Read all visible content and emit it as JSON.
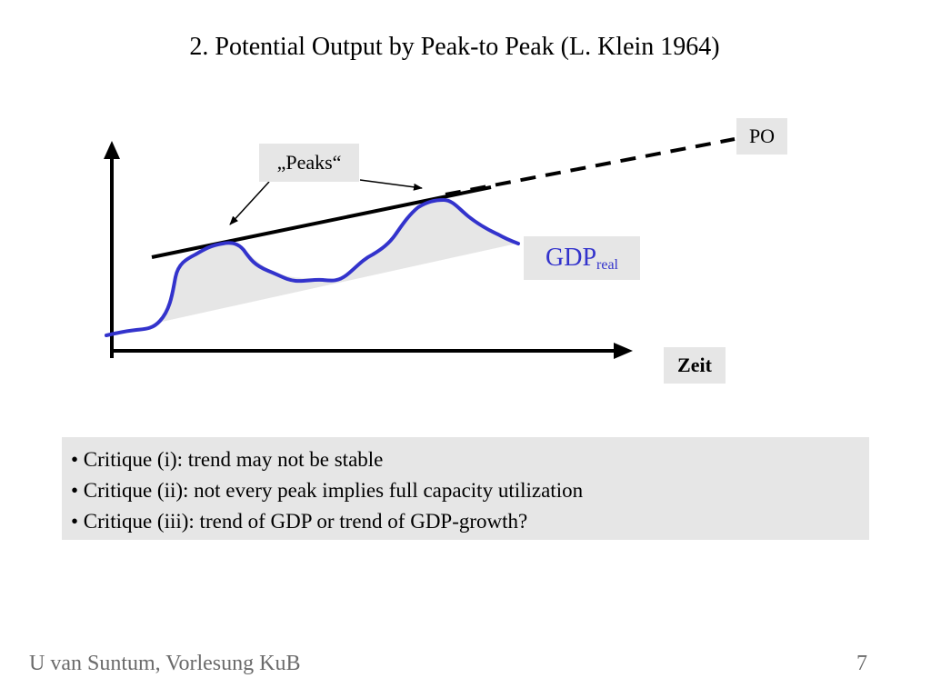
{
  "slide": {
    "title": "2. Potential Output by Peak-to Peak (L. Klein 1964)"
  },
  "diagram": {
    "po_label": "PO",
    "peaks_label": "„Peaks“",
    "gdp_label": "GDP",
    "gdp_subscript": "real",
    "x_axis_label": "Zeit",
    "colors": {
      "gdp_line": "#3333cc",
      "trend_line": "#000000",
      "shaded_area": "#e6e6e6"
    }
  },
  "critiques": [
    "• Critique (i): trend may not be stable",
    "• Critique (ii): not every peak implies full capacity utilization",
    "• Critique (iii): trend of GDP or trend of GDP-growth?"
  ],
  "footer": {
    "author": "U van Suntum, Vorlesung KuB",
    "page_number": "7"
  }
}
